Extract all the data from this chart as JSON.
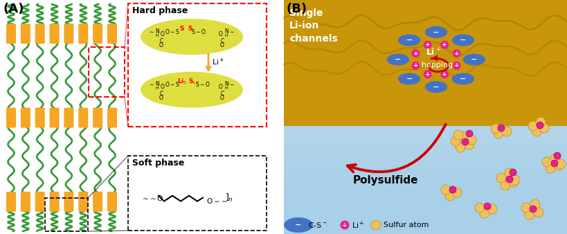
{
  "panel_A_label": "(A)",
  "panel_B_label": "(B)",
  "orange_color": "#F5A623",
  "green_color": "#3A9A3A",
  "hard_phase_label": "Hard phase",
  "soft_phase_label": "Soft phase",
  "single_li_label": "Single\nLi-ion\nchannels",
  "hopping_label": "hopping",
  "polysulfide_label": "Polysulfide",
  "legend_s": "Sulfur atom",
  "blue_oval_color": "#4472C4",
  "pink_plus_color": "#E91E8C",
  "yellow_s_color": "#F0C060",
  "gold_bg": "#C89608",
  "blue_bg": "#A8D0E8",
  "red_arrow": "#CC0000",
  "yg_color": "#CCCC00",
  "mol_yellow": "#D4D400"
}
